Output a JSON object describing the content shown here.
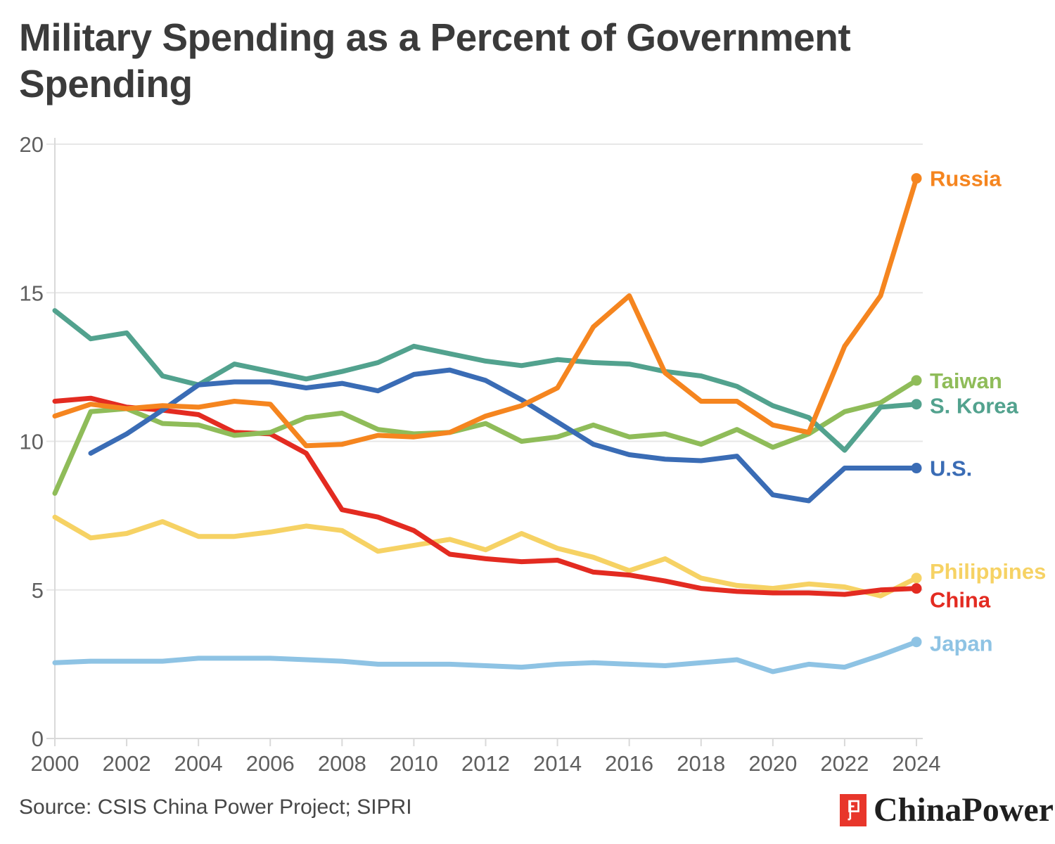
{
  "title_lines": [
    "Military Spending as a Percent of Government",
    "Spending"
  ],
  "title": "Military Spending as a Percent of Government Spending",
  "source": {
    "text": "Source: CSIS China Power Project; SIPRI"
  },
  "logo": {
    "text": "ChinaPower",
    "mark_color": "#e8362b",
    "mark_glyph_color": "#ffffff"
  },
  "colors": {
    "title": "#3b3b3b",
    "tick_label": "#5f5f5f",
    "gridline": "#e7e7e7",
    "axis_line": "#d9d9d9",
    "background": "#ffffff"
  },
  "chart_data": {
    "type": "line",
    "title": "Military Spending as a Percent of Government Spending",
    "xlabel": "",
    "ylabel": "",
    "x": [
      2000,
      2001,
      2002,
      2003,
      2004,
      2005,
      2006,
      2007,
      2008,
      2009,
      2010,
      2011,
      2012,
      2013,
      2014,
      2015,
      2016,
      2017,
      2018,
      2019,
      2020,
      2021,
      2022,
      2023,
      2024
    ],
    "xticks": [
      2000,
      2002,
      2004,
      2006,
      2008,
      2010,
      2012,
      2014,
      2016,
      2018,
      2020,
      2022,
      2024
    ],
    "yticks": [
      0,
      5,
      10,
      15,
      20
    ],
    "ylim": [
      0,
      20
    ],
    "xlim": [
      2000,
      2024
    ],
    "grid": "horizontal",
    "legend_position": "right-of-line-ends",
    "series": [
      {
        "name": "Japan",
        "color": "#8ec3e4",
        "label_dy": 2,
        "values": [
          2.55,
          2.6,
          2.6,
          2.6,
          2.7,
          2.7,
          2.7,
          2.65,
          2.6,
          2.5,
          2.5,
          2.5,
          2.45,
          2.4,
          2.5,
          2.55,
          2.5,
          2.45,
          2.55,
          2.65,
          2.25,
          2.5,
          2.4,
          2.8,
          3.25
        ]
      },
      {
        "name": "Philippines",
        "color": "#f6d264",
        "label_dy": -10,
        "values": [
          7.45,
          6.75,
          6.9,
          7.3,
          6.8,
          6.8,
          6.95,
          7.15,
          7.0,
          6.3,
          6.5,
          6.7,
          6.35,
          6.9,
          6.4,
          6.1,
          5.65,
          6.05,
          5.4,
          5.15,
          5.05,
          5.2,
          5.1,
          4.8,
          5.4
        ]
      },
      {
        "name": "China",
        "color": "#e32b21",
        "label_dy": 16,
        "values": [
          11.35,
          11.45,
          11.15,
          11.05,
          10.9,
          10.3,
          10.25,
          9.6,
          7.7,
          7.45,
          7.0,
          6.2,
          6.05,
          5.95,
          6.0,
          5.6,
          5.5,
          5.3,
          5.05,
          4.95,
          4.9,
          4.9,
          4.85,
          5.0,
          5.05
        ]
      },
      {
        "name": "Taiwan",
        "color": "#8fbc59",
        "label_dy": 0,
        "values": [
          8.25,
          11.0,
          11.1,
          10.6,
          10.55,
          10.2,
          10.3,
          10.8,
          10.95,
          10.4,
          10.25,
          10.3,
          10.6,
          10.0,
          10.15,
          10.55,
          10.15,
          10.25,
          9.9,
          10.4,
          9.8,
          10.25,
          11.0,
          11.3,
          12.05
        ]
      },
      {
        "name": "S. Korea",
        "color": "#52a28e",
        "label_dy": 2,
        "values": [
          14.4,
          13.45,
          13.65,
          12.2,
          11.9,
          12.6,
          12.35,
          12.1,
          12.35,
          12.65,
          13.2,
          12.95,
          12.7,
          12.55,
          12.75,
          12.65,
          12.6,
          12.35,
          12.2,
          11.85,
          11.2,
          10.8,
          9.7,
          11.15,
          11.25
        ]
      },
      {
        "name": "U.S.",
        "color": "#3a6cb5",
        "label_dy": 0,
        "values": [
          null,
          9.6,
          10.25,
          11.05,
          11.9,
          12.0,
          12.0,
          11.8,
          11.95,
          11.7,
          12.25,
          12.4,
          12.05,
          11.4,
          10.65,
          9.9,
          9.55,
          9.4,
          9.35,
          9.5,
          8.2,
          8.0,
          9.1,
          9.1,
          9.1
        ]
      },
      {
        "name": "Russia",
        "color": "#f5851f",
        "label_dy": 0,
        "values": [
          10.85,
          11.25,
          11.1,
          11.2,
          11.15,
          11.35,
          11.25,
          9.85,
          9.9,
          10.2,
          10.15,
          10.3,
          10.85,
          11.2,
          11.8,
          13.85,
          14.9,
          12.3,
          11.35,
          11.35,
          10.55,
          10.3,
          13.2,
          14.9,
          18.85
        ]
      }
    ]
  }
}
